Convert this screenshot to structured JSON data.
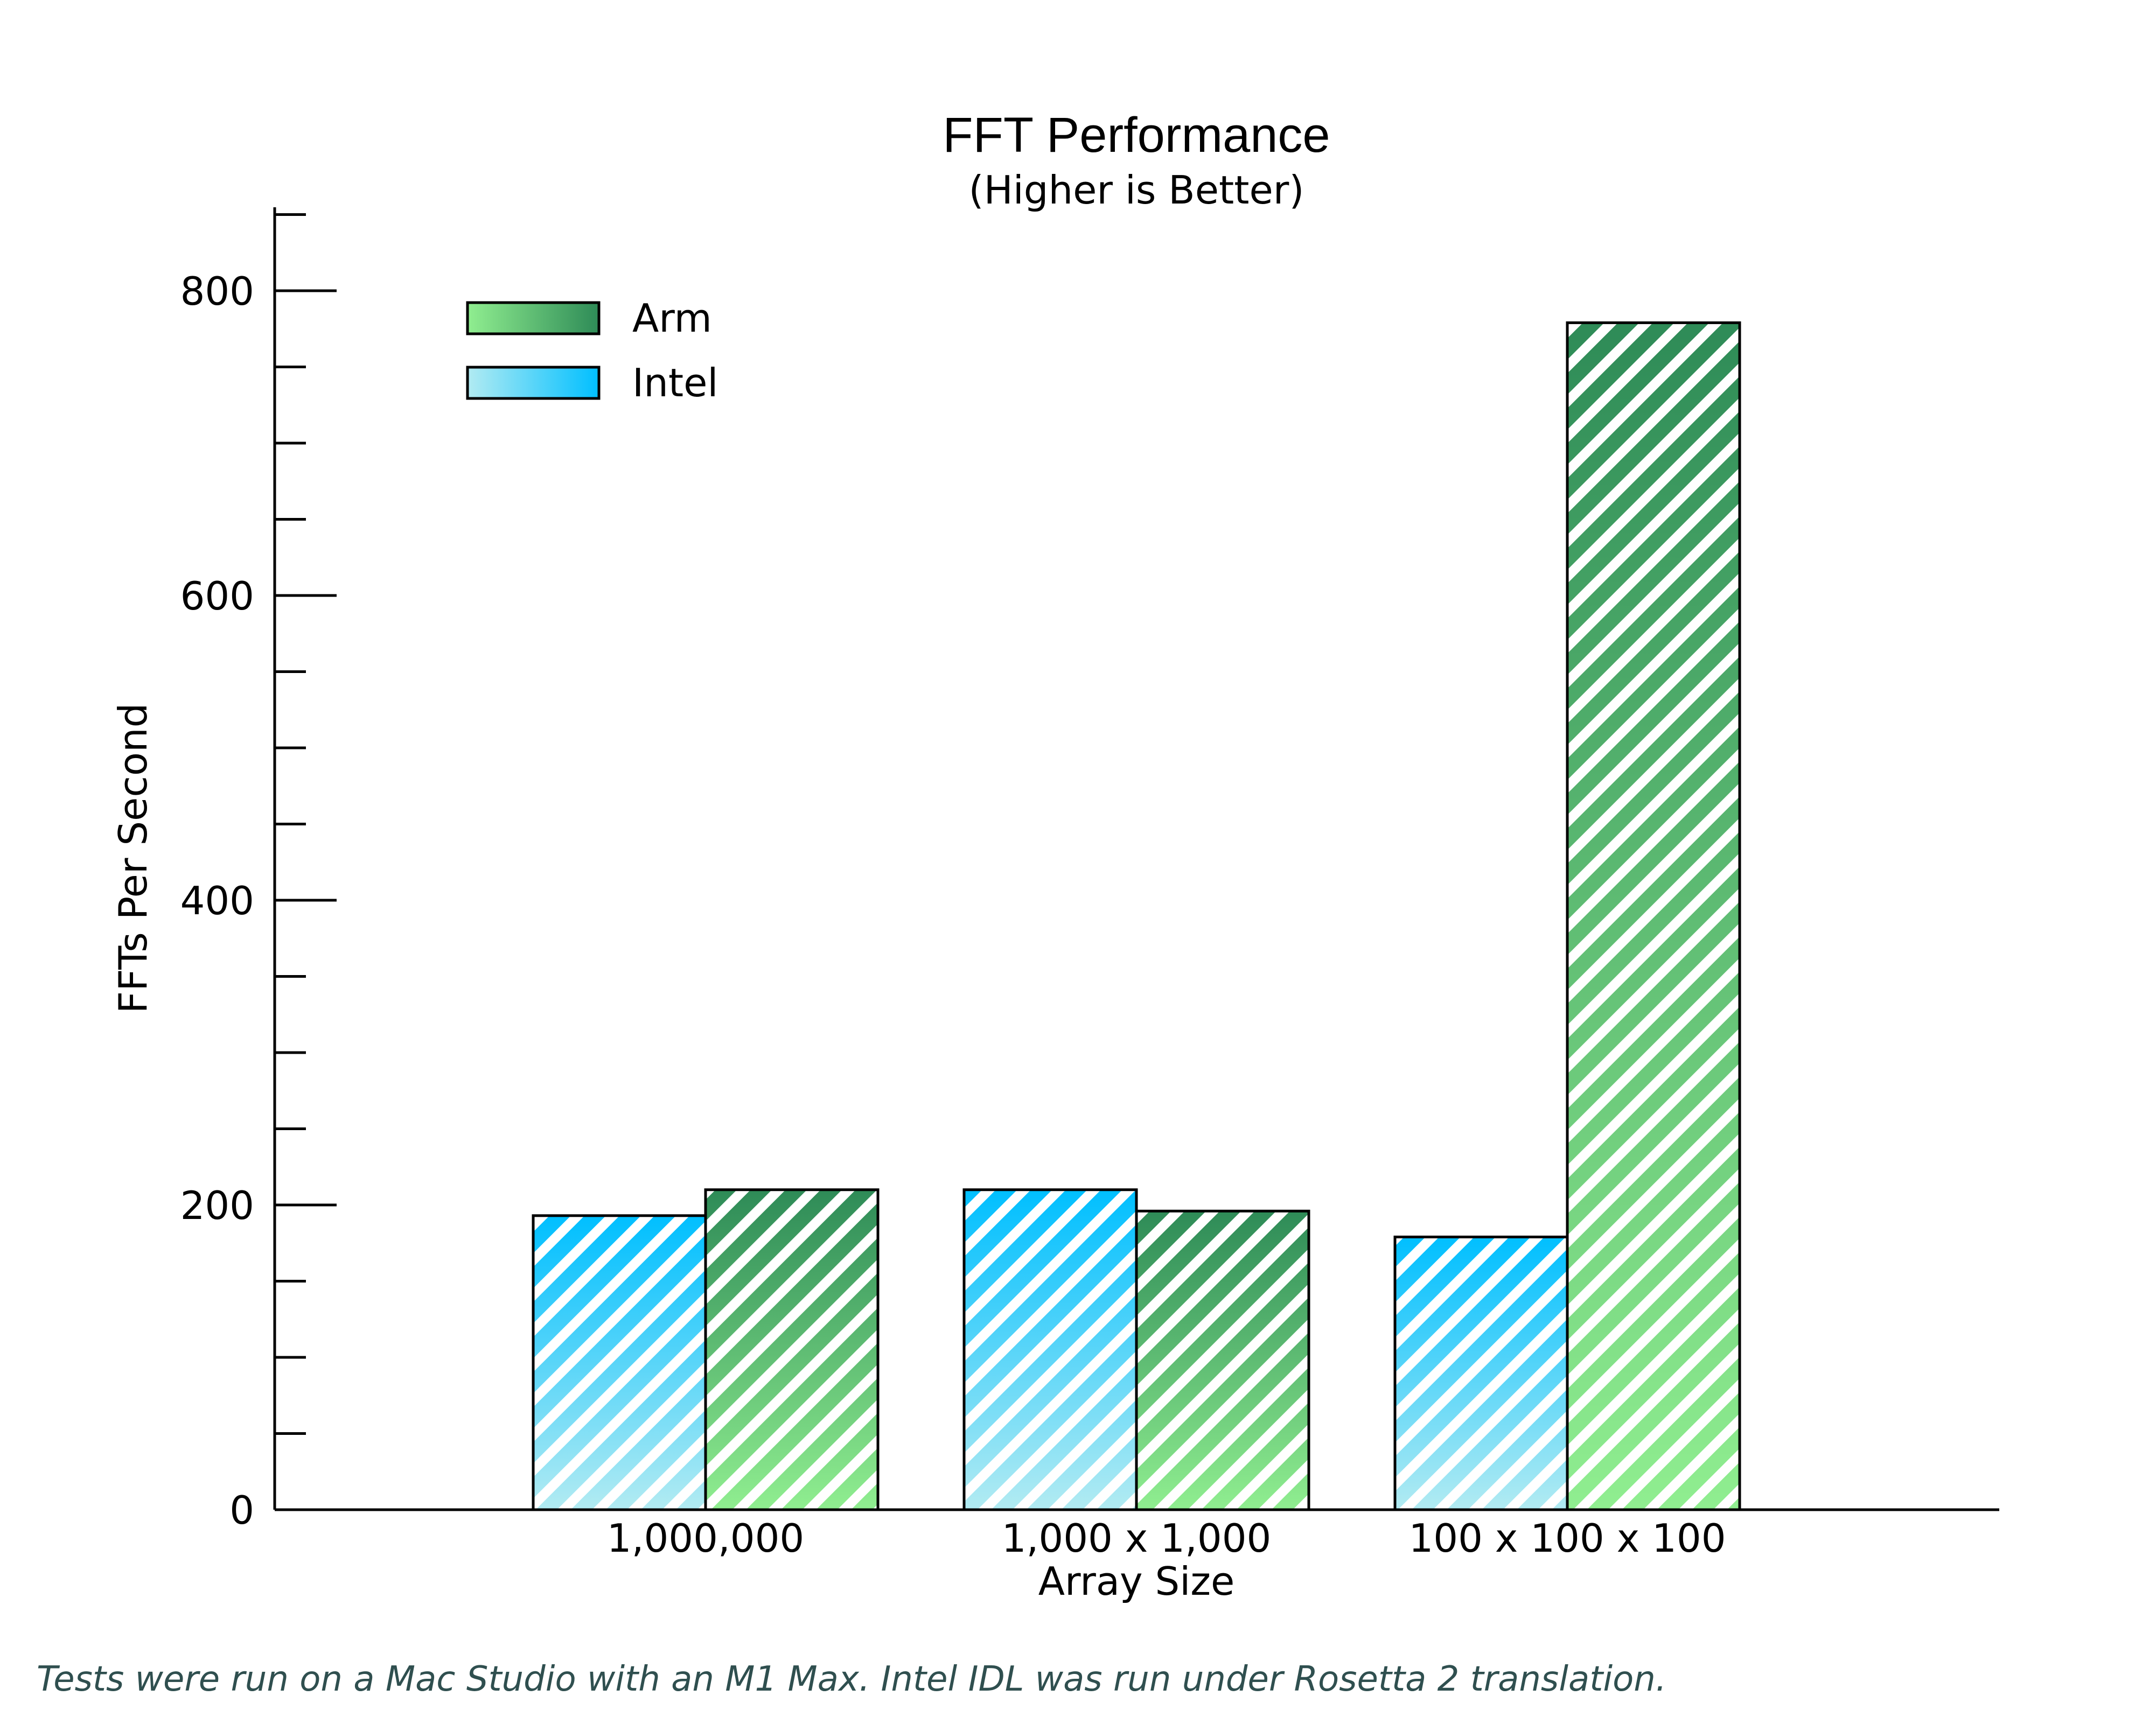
{
  "chart_data": {
    "type": "bar",
    "title": "FFT Performance",
    "subtitle": "(Higher is Better)",
    "xlabel": "Array Size",
    "ylabel": "FFTs Per Second",
    "categories": [
      "1,000,000",
      "1,000 x 1,000",
      "100 x 100 x 100"
    ],
    "series": [
      {
        "name": "Intel",
        "values": [
          193,
          210,
          179
        ],
        "color_light": "#b2ebf2",
        "color_dark": "#00bfff"
      },
      {
        "name": "Arm",
        "values": [
          210,
          196,
          779
        ],
        "color_light": "#90ee90",
        "color_dark": "#2e8b57"
      }
    ],
    "ylim": [
      0,
      850
    ],
    "yticks_major": [
      0,
      200,
      400,
      600,
      800
    ],
    "ytick_labels": [
      "0",
      "200",
      "400",
      "600",
      "800"
    ],
    "yticks_minor_step": 50,
    "legend": {
      "position": "top-left",
      "order": [
        "Arm",
        "Intel"
      ]
    },
    "bar_pattern": "diagonal-stripes",
    "grid": false
  },
  "footnote": "Tests were run on a Mac Studio with an M1 Max.  Intel IDL was run under Rosetta 2 translation."
}
